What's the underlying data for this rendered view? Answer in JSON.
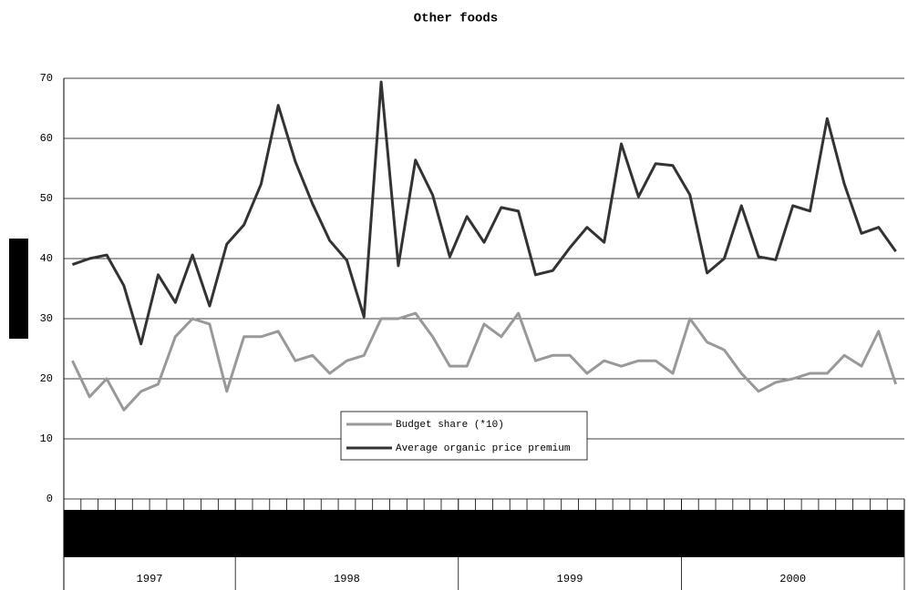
{
  "chart_data": {
    "type": "line",
    "title": "Other foods",
    "categories": [
      null,
      null,
      null,
      null,
      null,
      null,
      null,
      null,
      null,
      null,
      null,
      null,
      null,
      null,
      null,
      null,
      null,
      null,
      null,
      null,
      null,
      null,
      null,
      null,
      null,
      null,
      null,
      null,
      null,
      null,
      null,
      null,
      null,
      null,
      null,
      null,
      null,
      null,
      null,
      null,
      null,
      null,
      null,
      null,
      null,
      null,
      null,
      null,
      null
    ],
    "x_groups": [
      {
        "label": "1997",
        "span": 10
      },
      {
        "label": "1998",
        "span": 13
      },
      {
        "label": "1999",
        "span": 13
      },
      {
        "label": "2000",
        "span": 13
      }
    ],
    "series": [
      {
        "name": "Budget share (*10)",
        "color": "#999999",
        "values": [
          23,
          17,
          20,
          14.8,
          17.9,
          19.1,
          27,
          30,
          29.1,
          17.9,
          27,
          27,
          27.9,
          23,
          23.9,
          20.9,
          23,
          23.9,
          30,
          30,
          30.9,
          27,
          22.1,
          22.1,
          29.1,
          27,
          30.9,
          23,
          23.9,
          23.9,
          20.9,
          23,
          22.1,
          23,
          23,
          20.9,
          30,
          26.1,
          24.8,
          20.9,
          17.9,
          19.4,
          20,
          20.9,
          20.9,
          23.9,
          22.1,
          27.9,
          19.1
        ]
      },
      {
        "name": "Average organic price premium",
        "color": "#333333",
        "values": [
          39,
          40,
          40.6,
          35.5,
          25.8,
          37.3,
          32.7,
          40.6,
          32.1,
          42.4,
          45.6,
          52.4,
          65.5,
          56.1,
          49.1,
          43,
          39.7,
          30.3,
          69.4,
          38.8,
          56.4,
          50.6,
          40.3,
          47,
          42.7,
          48.5,
          47.9,
          37.3,
          38,
          41.8,
          45.2,
          42.7,
          59.1,
          50.3,
          55.8,
          55.5,
          50.6,
          37.6,
          40,
          48.8,
          40.3,
          39.8,
          48.8,
          47.9,
          63.3,
          52.4,
          44.2,
          45.2,
          41.2
        ]
      }
    ],
    "ylim": [
      0,
      70
    ],
    "yticks": [
      0,
      10,
      20,
      30,
      40,
      50,
      60,
      70
    ],
    "grid": true
  }
}
